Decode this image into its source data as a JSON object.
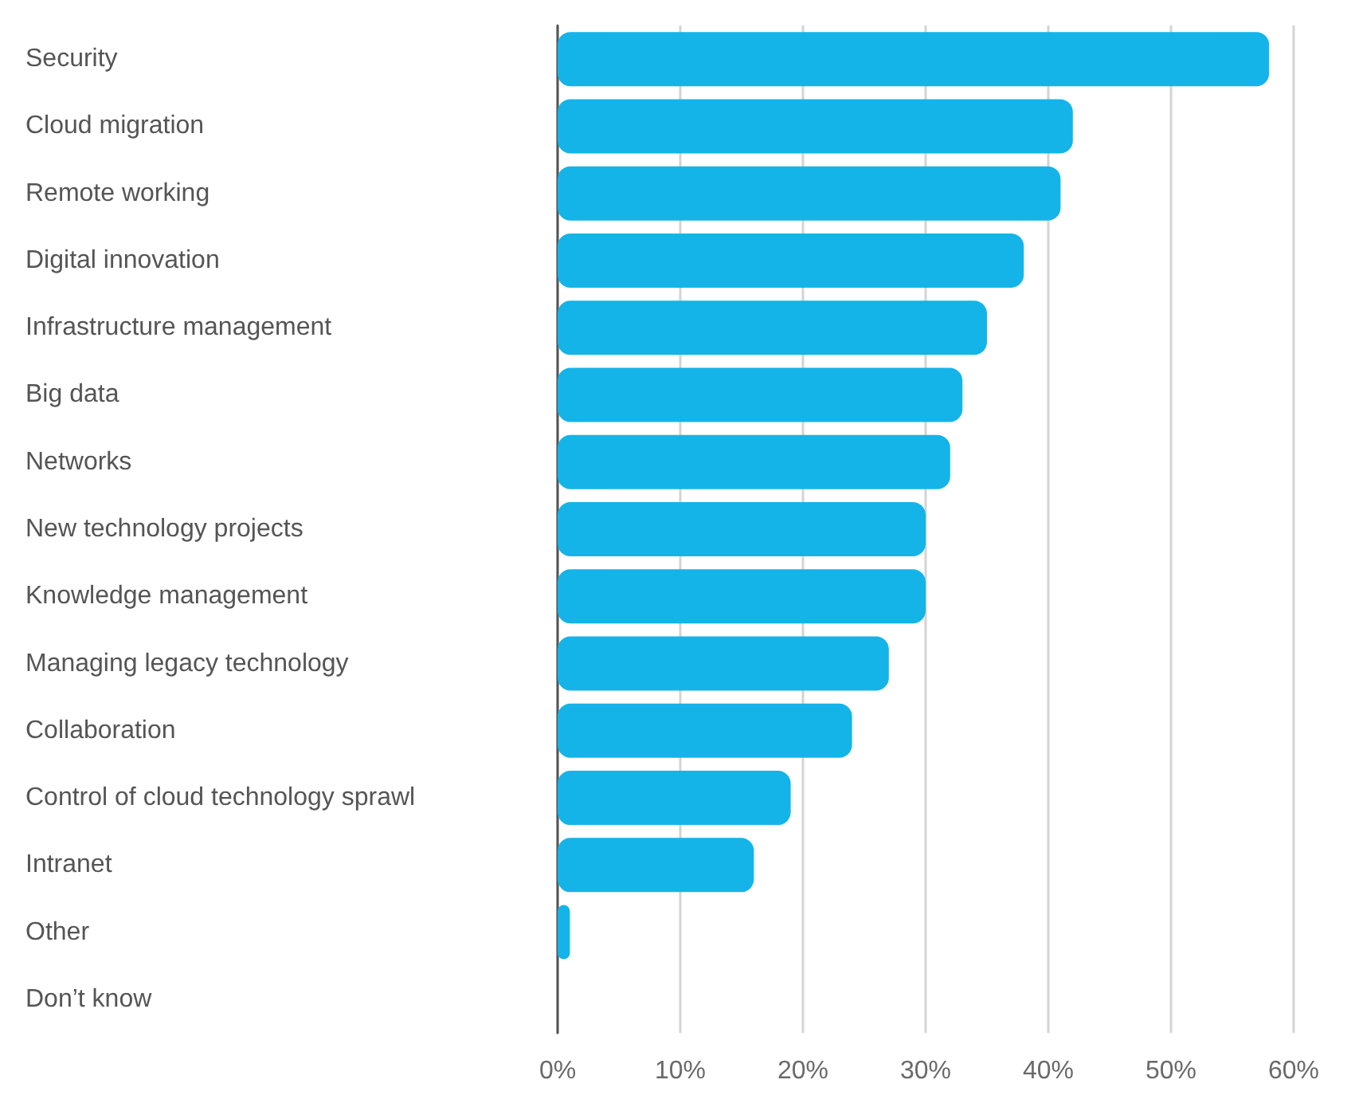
{
  "chart_data": {
    "type": "bar",
    "orientation": "horizontal",
    "categories": [
      "Security",
      "Cloud migration",
      "Remote working",
      "Digital innovation",
      "Infrastructure management",
      "Big data",
      "Networks",
      "New technology projects",
      "Knowledge management",
      "Managing legacy technology",
      "Collaboration",
      "Control of cloud technology sprawl",
      "Intranet",
      "Other",
      "Don’t know"
    ],
    "values": [
      58,
      42,
      41,
      38,
      35,
      33,
      32,
      30,
      30,
      27,
      24,
      19,
      16,
      1,
      0
    ],
    "color": "#14b4e8",
    "xlim": [
      0,
      60
    ],
    "xticks": [
      {
        "value": 0,
        "label": "0%"
      },
      {
        "value": 10,
        "label": "10%"
      },
      {
        "value": 20,
        "label": "20%"
      },
      {
        "value": 30,
        "label": "30%"
      },
      {
        "value": 40,
        "label": "40%"
      },
      {
        "value": 50,
        "label": "50%"
      },
      {
        "value": 60,
        "label": "60%"
      }
    ],
    "grid": "x"
  }
}
